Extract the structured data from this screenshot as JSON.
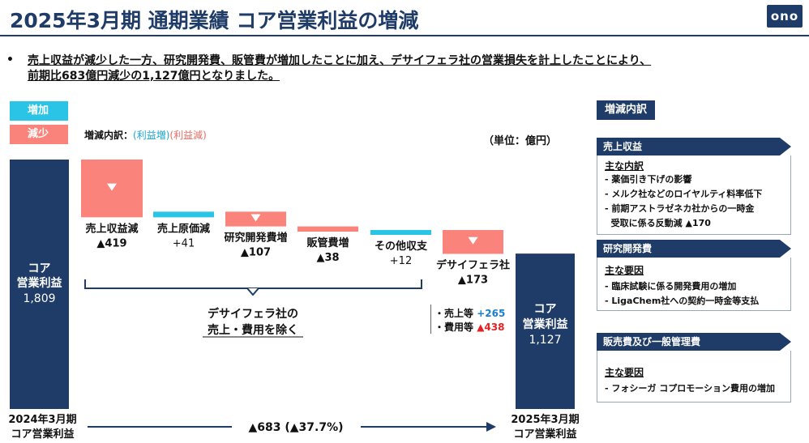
{
  "header": {
    "title": "2025年3月期 通期業績 コア営業利益の増減",
    "logo": "ono"
  },
  "summary": {
    "bullet": "•",
    "line1": "売上収益が減少した一方、研究開発費、販管費が増加したことに加え、デサイフェラ社の営業損失を計上したことにより、",
    "line2": "前期比683億円減少の1,127億円となりました。"
  },
  "legend": {
    "increase": "増加",
    "decrease": "減少",
    "key_prefix": "増減内訳：",
    "key_up": "(利益増)",
    "key_down": "(利益減)",
    "unit": "（単位：億円）"
  },
  "colors": {
    "navy": "#1f3c68",
    "increase": "#29c4e6",
    "decrease": "#fa847b"
  },
  "chart_data": {
    "type": "bar",
    "title": "",
    "start": {
      "label_top": "コア",
      "label_mid": "営業利益",
      "value": 1809,
      "value_label": "1,809",
      "axis_label_1": "2024年3月期",
      "axis_label_2": "コア営業利益"
    },
    "steps": [
      {
        "name": "売上収益減",
        "delta": -419,
        "value_label": "▲419"
      },
      {
        "name": "売上原価減",
        "delta": 41,
        "value_label": "+41"
      },
      {
        "name": "研究開発費増",
        "delta": -107,
        "value_label": "▲107"
      },
      {
        "name": "販管費増",
        "delta": -38,
        "value_label": "▲38"
      },
      {
        "name": "その他収支",
        "delta": 12,
        "value_label": "+12"
      },
      {
        "name": "デサイフェラ社",
        "delta": -173,
        "value_label": "▲173"
      }
    ],
    "end": {
      "label_top": "コア",
      "label_mid": "営業利益",
      "value": 1127,
      "value_label": "1,127",
      "axis_label_1": "2025年3月期",
      "axis_label_2": "コア営業利益"
    },
    "bracket_label_1": "デサイフェラ社の",
    "bracket_label_2": "売上・費用を除く",
    "change_label": "▲683 (▲37.7%)",
    "deciphera_detail": [
      {
        "label": "・売上等",
        "value": "+265",
        "sign": "pos"
      },
      {
        "label": "・費用等",
        "value": "▲438",
        "sign": "neg"
      }
    ]
  },
  "sidebar": {
    "title": "増減内訳",
    "sections": [
      {
        "heading": "売上収益",
        "sub": "主な内訳",
        "lines": [
          "- 薬価引き下げの影響",
          "- メルク社などのロイヤルティ料率低下",
          "- 前期アストラゼネカ社からの一時金",
          "  受取に係る反動減 ▲170"
        ]
      },
      {
        "heading": "研究開発費",
        "sub": "主な要因",
        "lines": [
          "- 臨床試験に係る開発費用の増加",
          "- LigaChem社への契約一時金等支払"
        ]
      },
      {
        "heading": "販売費及び一般管理費",
        "sub": "主な要因",
        "lines": [
          "- フォシーガ コプロモーション費用の増加"
        ]
      }
    ]
  }
}
